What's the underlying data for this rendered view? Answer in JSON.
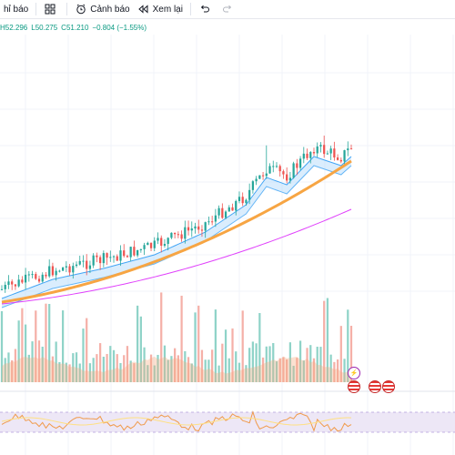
{
  "toolbar": {
    "indicators_label": "hỉ báo",
    "alert_label": "Cảnh báo",
    "replay_label": "Xem lại",
    "icons": [
      "indicators-grid-icon",
      "alarm-clock-icon",
      "replay-icon",
      "undo-icon",
      "redo-icon"
    ]
  },
  "legend": {
    "high": "H52.296",
    "low": "L50.275",
    "close": "C51.210",
    "change": "−0.804 (−1.55%)"
  },
  "colors": {
    "up": "#26a69a",
    "down": "#ef5350",
    "ema_fast": "#42a5f5",
    "ema_slow": "#f7a543",
    "sma_long": "#e040fb",
    "rsi": "#f09a4a",
    "rsi_band": "#ede7f6",
    "volume_up": "#8fd3c8",
    "volume_down": "#f5b0a8"
  },
  "chart_data": {
    "type": "candlestick",
    "title": "",
    "price_range_px_hint": "",
    "series": [
      {
        "name": "",
        "kind": "candles"
      },
      {
        "name": "",
        "kind": "ema-band"
      },
      {
        "name": "",
        "kind": "ema-long"
      },
      {
        "name": "",
        "kind": "sma-long"
      }
    ],
    "last": {
      "high": 52.296,
      "low": 50.275,
      "close": 51.21,
      "change": -0.804,
      "change_pct": -1.55
    },
    "candle_count": 104,
    "panes": [
      "price",
      "volume",
      "rsi"
    ]
  },
  "event_badges": [
    {
      "kind": "lightning-icon"
    },
    {
      "kind": "us-flag-icon"
    },
    {
      "kind": "us-flag-icon"
    },
    {
      "kind": "us-flag-icon"
    }
  ]
}
